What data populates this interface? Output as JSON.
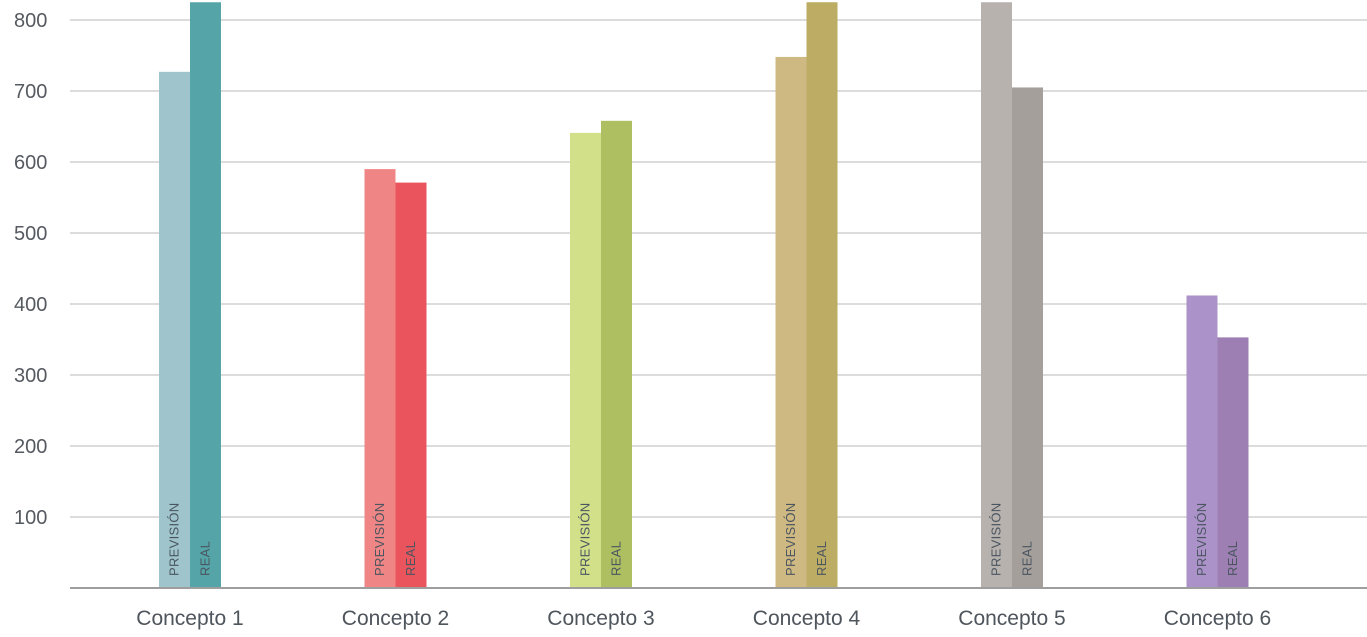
{
  "chart_data": {
    "type": "bar",
    "title": "",
    "xlabel": "",
    "ylabel": "",
    "categories": [
      "Concepto 1",
      "Concepto 2",
      "Concepto 3",
      "Concepto 4",
      "Concepto 5",
      "Concepto 6"
    ],
    "series": [
      {
        "name": "PREVISIÓN",
        "values": [
          727,
          590,
          641,
          748,
          825,
          412
        ]
      },
      {
        "name": "REAL",
        "values": [
          825,
          571,
          658,
          825,
          705,
          353
        ]
      }
    ],
    "yticks": [
      100,
      200,
      300,
      400,
      500,
      600,
      700,
      800
    ],
    "ylim": [
      0,
      825
    ],
    "grid": true,
    "legend": "none",
    "bar_labels": [
      "PREVISIÓN",
      "REAL"
    ],
    "colors": [
      {
        "prevision": "#9fc4cb",
        "real": "#55a5a8"
      },
      {
        "prevision": "#f08585",
        "real": "#ea555d"
      },
      {
        "prevision": "#d2e08a",
        "real": "#aebf62"
      },
      {
        "prevision": "#cfb982",
        "real": "#bdac64"
      },
      {
        "prevision": "#b8b2ae",
        "real": "#a49f9b"
      },
      {
        "prevision": "#ab93c9",
        "real": "#9e7fb3"
      }
    ],
    "gridColor": "#b8b8b8",
    "axisColor": "#9e9e9e"
  }
}
